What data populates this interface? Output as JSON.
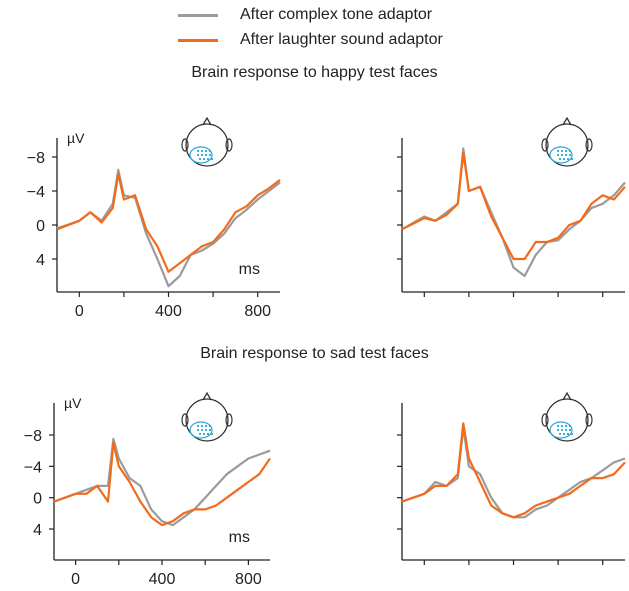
{
  "legend": {
    "items": [
      {
        "label": "After complex tone adaptor",
        "color": "#9b9b9b"
      },
      {
        "label": "After laughter sound adaptor",
        "color": "#f26b1d"
      }
    ]
  },
  "sections": [
    {
      "title": "Brain response to happy test faces"
    },
    {
      "title": "Brain response to sad test faces"
    }
  ],
  "y_unit": "µV",
  "x_unit": "ms",
  "electrode_color": "#2aa7d8",
  "chart_data": [
    {
      "type": "line",
      "panel": "happy-left",
      "x": [
        -100,
        0,
        50,
        100,
        150,
        175,
        200,
        250,
        300,
        350,
        400,
        450,
        500,
        550,
        600,
        650,
        700,
        750,
        800,
        850,
        900
      ],
      "xlim": [
        -100,
        900
      ],
      "ylim": [
        8,
        -10
      ],
      "y_inverted": true,
      "xticks": [
        0,
        400,
        800
      ],
      "yticks": [
        -8,
        -4,
        0,
        4
      ],
      "series": [
        {
          "name": "After complex tone adaptor",
          "color": "#9b9b9b",
          "values": [
            0.4,
            -0.5,
            -1.5,
            -0.5,
            -2.5,
            -6.5,
            -3.5,
            -3.2,
            1.0,
            4.0,
            7.2,
            6.0,
            3.5,
            3.0,
            2.2,
            1.0,
            -0.8,
            -1.8,
            -3.0,
            -4.0,
            -5.0
          ]
        },
        {
          "name": "After laughter sound adaptor",
          "color": "#f26b1d",
          "values": [
            0.5,
            -0.5,
            -1.5,
            -0.3,
            -2.0,
            -6.0,
            -3.0,
            -3.5,
            0.5,
            2.5,
            5.5,
            4.5,
            3.5,
            2.5,
            2.0,
            0.5,
            -1.5,
            -2.2,
            -3.5,
            -4.3,
            -5.3
          ]
        }
      ]
    },
    {
      "type": "line",
      "panel": "happy-right",
      "x": [
        -100,
        0,
        50,
        100,
        150,
        175,
        200,
        250,
        300,
        350,
        400,
        450,
        500,
        550,
        600,
        650,
        700,
        750,
        800,
        850,
        900
      ],
      "xlim": [
        -100,
        900
      ],
      "ylim": [
        8,
        -10
      ],
      "y_inverted": true,
      "xticks": [],
      "yticks": [],
      "series": [
        {
          "name": "After complex tone adaptor",
          "color": "#9b9b9b",
          "values": [
            0.5,
            -1.0,
            -0.5,
            -1.5,
            -2.5,
            -9.0,
            -4.0,
            -4.5,
            -1.5,
            1.5,
            5.0,
            6.0,
            3.5,
            2.0,
            1.8,
            0.5,
            -0.5,
            -2.0,
            -2.5,
            -3.5,
            -5.0
          ]
        },
        {
          "name": "After laughter sound adaptor",
          "color": "#f26b1d",
          "values": [
            0.5,
            -0.8,
            -0.5,
            -1.2,
            -2.5,
            -8.5,
            -4.0,
            -4.5,
            -1.0,
            1.5,
            4.0,
            4.0,
            2.0,
            2.0,
            1.5,
            0.0,
            -0.5,
            -2.5,
            -3.5,
            -3.0,
            -4.5
          ]
        }
      ]
    },
    {
      "type": "line",
      "panel": "sad-left",
      "x": [
        -100,
        0,
        50,
        100,
        150,
        175,
        200,
        250,
        300,
        350,
        400,
        450,
        500,
        550,
        600,
        650,
        700,
        750,
        800,
        850,
        900
      ],
      "xlim": [
        -100,
        900
      ],
      "ylim": [
        8,
        -10
      ],
      "y_inverted": true,
      "xticks": [
        0,
        400,
        800
      ],
      "yticks": [
        -8,
        -4,
        0,
        4
      ],
      "series": [
        {
          "name": "After complex tone adaptor",
          "color": "#9b9b9b",
          "values": [
            0.5,
            -0.5,
            -1.0,
            -1.5,
            -1.5,
            -7.5,
            -5.0,
            -2.5,
            -1.5,
            1.5,
            3.0,
            3.5,
            2.5,
            1.5,
            0.0,
            -1.5,
            -3.0,
            -4.0,
            -5.0,
            -5.5,
            -6.0
          ]
        },
        {
          "name": "After laughter sound adaptor",
          "color": "#f26b1d",
          "values": [
            0.5,
            -0.5,
            -0.5,
            -1.5,
            0.5,
            -7.0,
            -4.0,
            -2.0,
            0.5,
            2.5,
            3.5,
            3.0,
            2.0,
            1.5,
            1.5,
            1.0,
            0.0,
            -1.0,
            -2.0,
            -3.0,
            -5.0
          ]
        }
      ]
    },
    {
      "type": "line",
      "panel": "sad-right",
      "x": [
        -100,
        0,
        50,
        100,
        150,
        175,
        200,
        250,
        300,
        350,
        400,
        450,
        500,
        550,
        600,
        650,
        700,
        750,
        800,
        850,
        900
      ],
      "xlim": [
        -100,
        900
      ],
      "ylim": [
        8,
        -10
      ],
      "y_inverted": true,
      "xticks": [],
      "yticks": [],
      "series": [
        {
          "name": "After complex tone adaptor",
          "color": "#9b9b9b",
          "values": [
            0.5,
            -0.5,
            -2.0,
            -1.5,
            -2.5,
            -9.0,
            -4.0,
            -3.0,
            0.0,
            2.0,
            2.5,
            2.5,
            1.5,
            1.0,
            0.0,
            -1.0,
            -2.0,
            -2.5,
            -3.5,
            -4.5,
            -5.0
          ]
        },
        {
          "name": "After laughter sound adaptor",
          "color": "#f26b1d",
          "values": [
            0.5,
            -0.5,
            -1.5,
            -1.5,
            -3.0,
            -9.5,
            -5.0,
            -2.0,
            1.0,
            2.0,
            2.5,
            2.0,
            1.0,
            0.5,
            0.0,
            -0.5,
            -1.5,
            -2.5,
            -2.5,
            -3.0,
            -4.5
          ]
        }
      ]
    }
  ]
}
